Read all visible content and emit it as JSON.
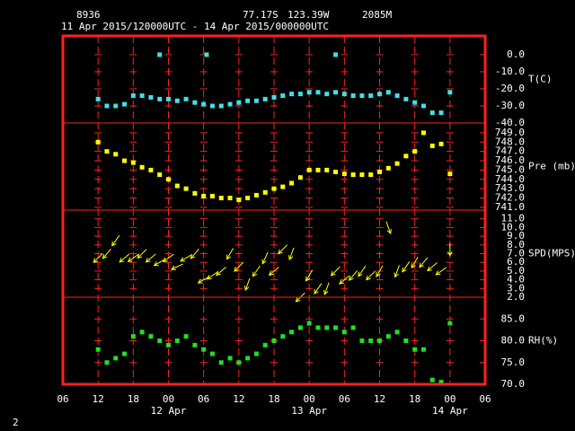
{
  "chart_data": {
    "type": "scatter",
    "station": "8936",
    "latitude": "77.17S",
    "longitude": "123.39W",
    "elevation": "2085M",
    "period": "11 Apr 2015/120000UTC - 14 Apr 2015/000000UTC",
    "page_number": "2",
    "xlim": [
      0,
      72
    ],
    "xticks": [
      {
        "value": 0,
        "label": "06"
      },
      {
        "value": 6,
        "label": "12"
      },
      {
        "value": 12,
        "label": "18"
      },
      {
        "value": 18,
        "label": "00"
      },
      {
        "value": 24,
        "label": "06"
      },
      {
        "value": 30,
        "label": "12"
      },
      {
        "value": 36,
        "label": "18"
      },
      {
        "value": 42,
        "label": "00"
      },
      {
        "value": 48,
        "label": "06"
      },
      {
        "value": 54,
        "label": "12"
      },
      {
        "value": 60,
        "label": "18"
      },
      {
        "value": 66,
        "label": "00"
      },
      {
        "value": 72,
        "label": "06"
      }
    ],
    "date_labels": [
      {
        "value": 18,
        "label": "12 Apr"
      },
      {
        "value": 42,
        "label": "13 Apr"
      },
      {
        "value": 66,
        "label": "14 Apr"
      }
    ],
    "grid": true,
    "x": [
      6,
      7.5,
      9,
      10.5,
      12,
      13.5,
      15,
      16.5,
      18,
      19.5,
      21,
      22.5,
      24,
      25.5,
      27,
      28.5,
      30,
      31.5,
      33,
      34.5,
      36,
      37.5,
      39,
      40.5,
      42,
      43.5,
      45,
      46.5,
      48,
      49.5,
      51,
      52.5,
      54,
      55.5,
      57,
      58.5,
      60,
      61.5,
      63,
      64.5,
      66
    ],
    "panels": [
      {
        "label": "T(C)",
        "color": "#40e0e8",
        "ylim": [
          -40,
          11
        ],
        "yticks": [
          {
            "value": 0,
            "label": "0.0"
          },
          {
            "value": -10,
            "label": "-10.0"
          },
          {
            "value": -20,
            "label": "-20.0"
          },
          {
            "value": -30,
            "label": "-30.0"
          },
          {
            "value": -40,
            "label": "-40.0"
          }
        ],
        "values": [
          -26,
          -30,
          -30,
          -29,
          -24,
          -24,
          -25,
          -26,
          -26,
          -27,
          -26,
          -28,
          -29,
          -30,
          -30,
          -29,
          -28,
          -27,
          -27,
          -26,
          -25,
          -24,
          -23,
          -23,
          -22,
          -22,
          -23,
          -22,
          -23,
          -24,
          -24,
          -24,
          -23,
          -22,
          -24,
          -26,
          -28,
          -30,
          -34,
          -34,
          -22
        ],
        "outliers_x": [
          16.5,
          24.5,
          46.5
        ],
        "outliers_values": [
          0,
          0,
          0
        ]
      },
      {
        "label": "Pre (mb)",
        "color": "#ffff00",
        "ylim": [
          740.7,
          750.05
        ],
        "yticks": [
          {
            "value": 749,
            "label": "749.0"
          },
          {
            "value": 748,
            "label": "748.0"
          },
          {
            "value": 747,
            "label": "747.0"
          },
          {
            "value": 746,
            "label": "746.0"
          },
          {
            "value": 745,
            "label": "745.0"
          },
          {
            "value": 744,
            "label": "744.0"
          },
          {
            "value": 743,
            "label": "743.0"
          },
          {
            "value": 742,
            "label": "742.0"
          },
          {
            "value": 741,
            "label": "741.0"
          }
        ],
        "values": [
          748,
          747,
          746.7,
          746,
          745.8,
          745.3,
          745,
          744.5,
          744,
          743.3,
          743,
          742.5,
          742.2,
          742.2,
          742,
          742,
          741.8,
          742,
          742.3,
          742.6,
          743,
          743.2,
          743.6,
          744.2,
          745,
          745,
          745,
          744.8,
          744.6,
          744.5,
          744.5,
          744.5,
          744.8,
          745.2,
          745.7,
          746.5,
          747,
          749,
          747.6,
          747.8,
          744.6
        ]
      },
      {
        "label": "SPD(MPS)",
        "color": "#ffff00",
        "ylim": [
          2,
          12
        ],
        "yticks": [
          {
            "value": 11,
            "label": "11.0"
          },
          {
            "value": 10,
            "label": "10.0"
          },
          {
            "value": 9,
            "label": "9.0"
          },
          {
            "value": 8,
            "label": "8.0"
          },
          {
            "value": 7,
            "label": "7.0"
          },
          {
            "value": 6,
            "label": "6.0"
          },
          {
            "value": 5,
            "label": "5.0"
          },
          {
            "value": 4,
            "label": "4.0"
          },
          {
            "value": 3,
            "label": "3.0"
          },
          {
            "value": 2,
            "label": "2.0"
          }
        ],
        "values": [
          6.5,
          7,
          8.5,
          6.5,
          6.5,
          7,
          6.5,
          6,
          6.5,
          5.5,
          6.5,
          7,
          4,
          4.5,
          5,
          7,
          5.5,
          3.5,
          5,
          6.5,
          5,
          7.5,
          7,
          2,
          4.5,
          3,
          3,
          5,
          4,
          4.5,
          5,
          4.5,
          5,
          10,
          5,
          5.5,
          6,
          6,
          5.5,
          5,
          7.5
        ],
        "directions": [
          225,
          220,
          215,
          230,
          235,
          225,
          230,
          240,
          235,
          245,
          240,
          220,
          240,
          235,
          230,
          210,
          225,
          200,
          215,
          205,
          230,
          225,
          200,
          225,
          210,
          215,
          200,
          225,
          230,
          220,
          215,
          225,
          210,
          160,
          200,
          215,
          210,
          220,
          230,
          235,
          180
        ]
      },
      {
        "label": "RH(%)",
        "color": "#20e020",
        "ylim": [
          70,
          90
        ],
        "yticks": [
          {
            "value": 85,
            "label": "85.0"
          },
          {
            "value": 80,
            "label": "80.0"
          },
          {
            "value": 75,
            "label": "75.0"
          },
          {
            "value": 70,
            "label": "70.0"
          }
        ],
        "values": [
          78,
          75,
          76,
          77,
          81,
          82,
          81,
          80,
          79,
          80,
          81,
          79,
          78,
          77,
          75,
          76,
          75,
          76,
          77,
          79,
          80,
          81,
          82,
          83,
          84,
          83,
          83,
          83,
          82,
          83,
          80,
          80,
          80,
          81,
          82,
          80,
          78,
          78,
          71,
          70.5,
          84
        ]
      }
    ]
  }
}
